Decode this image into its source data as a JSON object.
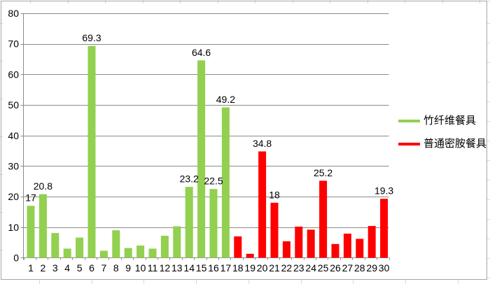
{
  "chart_data": {
    "type": "bar",
    "title": "",
    "xlabel": "",
    "ylabel": "",
    "categories": [
      "1",
      "2",
      "3",
      "4",
      "5",
      "6",
      "7",
      "8",
      "9",
      "10",
      "11",
      "12",
      "13",
      "14",
      "15",
      "16",
      "17",
      "18",
      "19",
      "20",
      "21",
      "22",
      "23",
      "24",
      "25",
      "26",
      "27",
      "28",
      "29",
      "30"
    ],
    "ylim": [
      0,
      80
    ],
    "yticks": [
      0,
      10,
      20,
      30,
      40,
      50,
      60,
      70,
      80
    ],
    "grid": true,
    "legend_position": "right",
    "series": [
      {
        "name": "竹纤维餐具",
        "color": "#92D050",
        "values": [
          17,
          20.8,
          8.1,
          3,
          6.6,
          69.3,
          2.3,
          9,
          3.2,
          4,
          3,
          7.2,
          10.3,
          23.2,
          64.6,
          22.5,
          49.2,
          null,
          null,
          null,
          null,
          null,
          null,
          null,
          null,
          null,
          null,
          null,
          null,
          null
        ],
        "data_labels": [
          "17",
          "20.8",
          null,
          null,
          null,
          "69.3",
          null,
          null,
          null,
          null,
          null,
          null,
          null,
          "23.2",
          "64.6",
          "22.5",
          "49.2",
          null,
          null,
          null,
          null,
          null,
          null,
          null,
          null,
          null,
          null,
          null,
          null,
          null
        ]
      },
      {
        "name": "普通密胺餐具",
        "color": "#FF0000",
        "values": [
          null,
          null,
          null,
          null,
          null,
          null,
          null,
          null,
          null,
          null,
          null,
          null,
          null,
          null,
          null,
          null,
          null,
          7,
          1.3,
          34.8,
          18,
          5.4,
          10.2,
          9.2,
          25.2,
          4.5,
          7.9,
          6.2,
          10.4,
          19.3
        ],
        "data_labels": [
          null,
          null,
          null,
          null,
          null,
          null,
          null,
          null,
          null,
          null,
          null,
          null,
          null,
          null,
          null,
          null,
          null,
          null,
          null,
          "34.8",
          "18",
          null,
          null,
          null,
          "25.2",
          null,
          null,
          null,
          null,
          "19.3"
        ]
      }
    ]
  }
}
